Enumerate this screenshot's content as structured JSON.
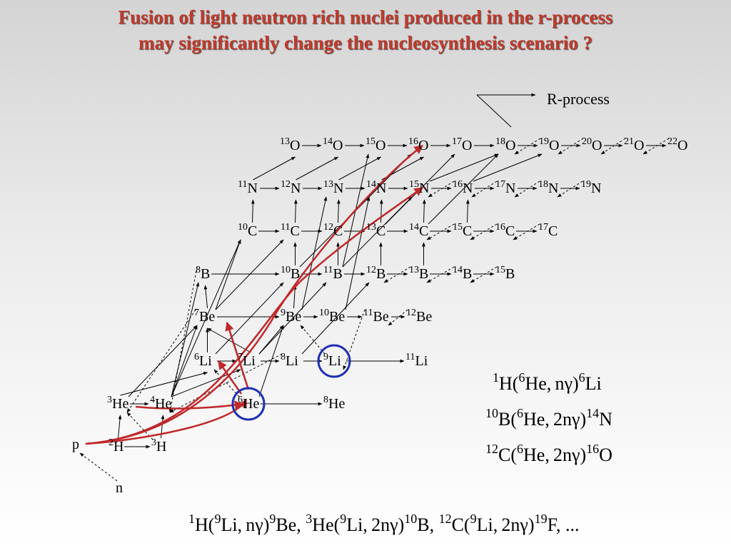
{
  "title": {
    "line1": "Fusion of light neutron rich nuclei produced in the r-process",
    "line2": "may significantly change the nucleosynthesis scenario ?"
  },
  "rprocess_label": "R-process",
  "nuclei": [
    {
      "id": "O13",
      "mass": "13",
      "el": "O"
    },
    {
      "id": "O14",
      "mass": "14",
      "el": "O"
    },
    {
      "id": "O15",
      "mass": "15",
      "el": "O"
    },
    {
      "id": "O16",
      "mass": "16",
      "el": "O"
    },
    {
      "id": "O17",
      "mass": "17",
      "el": "O"
    },
    {
      "id": "O18",
      "mass": "18",
      "el": "O"
    },
    {
      "id": "O19",
      "mass": "19",
      "el": "O"
    },
    {
      "id": "O20",
      "mass": "20",
      "el": "O"
    },
    {
      "id": "O21",
      "mass": "21",
      "el": "O"
    },
    {
      "id": "O22",
      "mass": "22",
      "el": "O"
    },
    {
      "id": "N11",
      "mass": "11",
      "el": "N"
    },
    {
      "id": "N12",
      "mass": "12",
      "el": "N"
    },
    {
      "id": "N13",
      "mass": "13",
      "el": "N"
    },
    {
      "id": "N14",
      "mass": "14",
      "el": "N"
    },
    {
      "id": "N15",
      "mass": "15",
      "el": "N"
    },
    {
      "id": "N16",
      "mass": "16",
      "el": "N"
    },
    {
      "id": "N17",
      "mass": "17",
      "el": "N"
    },
    {
      "id": "N18",
      "mass": "18",
      "el": "N"
    },
    {
      "id": "N19",
      "mass": "19",
      "el": "N"
    },
    {
      "id": "C10",
      "mass": "10",
      "el": "C"
    },
    {
      "id": "C11",
      "mass": "11",
      "el": "C"
    },
    {
      "id": "C12",
      "mass": "12",
      "el": "C"
    },
    {
      "id": "C13",
      "mass": "13",
      "el": "C"
    },
    {
      "id": "C14",
      "mass": "14",
      "el": "C"
    },
    {
      "id": "C15",
      "mass": "15",
      "el": "C"
    },
    {
      "id": "C16",
      "mass": "16",
      "el": "C"
    },
    {
      "id": "C17",
      "mass": "17",
      "el": "C"
    },
    {
      "id": "B8",
      "mass": "8",
      "el": "B"
    },
    {
      "id": "B10",
      "mass": "10",
      "el": "B"
    },
    {
      "id": "B11",
      "mass": "11",
      "el": "B"
    },
    {
      "id": "B12",
      "mass": "12",
      "el": "B"
    },
    {
      "id": "B13",
      "mass": "13",
      "el": "B"
    },
    {
      "id": "B14",
      "mass": "14",
      "el": "B"
    },
    {
      "id": "B15",
      "mass": "15",
      "el": "B"
    },
    {
      "id": "Be7",
      "mass": "7",
      "el": "Be"
    },
    {
      "id": "Be9",
      "mass": "9",
      "el": "Be"
    },
    {
      "id": "Be10",
      "mass": "10",
      "el": "Be"
    },
    {
      "id": "Be11",
      "mass": "11",
      "el": "Be"
    },
    {
      "id": "Be12",
      "mass": "12",
      "el": "Be"
    },
    {
      "id": "Li6",
      "mass": "6",
      "el": "Li"
    },
    {
      "id": "Li7",
      "mass": "7",
      "el": "Li"
    },
    {
      "id": "Li8",
      "mass": "8",
      "el": "Li"
    },
    {
      "id": "Li9",
      "mass": "9",
      "el": "Li"
    },
    {
      "id": "Li11",
      "mass": "11",
      "el": "Li"
    },
    {
      "id": "He3",
      "mass": "3",
      "el": "He"
    },
    {
      "id": "He4",
      "mass": "4",
      "el": "He"
    },
    {
      "id": "He6",
      "mass": "6",
      "el": "He"
    },
    {
      "id": "He8",
      "mass": "8",
      "el": "He"
    },
    {
      "id": "H2",
      "mass": "2",
      "el": "H"
    },
    {
      "id": "H3",
      "mass": "3",
      "el": "H"
    },
    {
      "id": "p",
      "mass": "",
      "el": "p"
    },
    {
      "id": "n",
      "mass": "",
      "el": "n"
    }
  ],
  "reactions_right": [
    [
      {
        "t": "1",
        "sup": true
      },
      {
        "t": "H("
      },
      {
        "t": "6",
        "sup": true
      },
      {
        "t": "He, nγ)"
      },
      {
        "t": "6",
        "sup": true
      },
      {
        "t": "Li"
      }
    ],
    [
      {
        "t": "10",
        "sup": true
      },
      {
        "t": "B("
      },
      {
        "t": "6",
        "sup": true
      },
      {
        "t": "He, 2nγ)"
      },
      {
        "t": "14",
        "sup": true
      },
      {
        "t": "N"
      }
    ],
    [
      {
        "t": "12",
        "sup": true
      },
      {
        "t": "C("
      },
      {
        "t": "6",
        "sup": true
      },
      {
        "t": "He, 2nγ)"
      },
      {
        "t": "16",
        "sup": true
      },
      {
        "t": "O"
      }
    ]
  ],
  "reactions_bottom": [
    {
      "t": "1",
      "sup": true
    },
    {
      "t": "H("
    },
    {
      "t": "9",
      "sup": true
    },
    {
      "t": "Li, nγ)"
    },
    {
      "t": "9",
      "sup": true
    },
    {
      "t": "Be,   "
    },
    {
      "t": "3",
      "sup": true
    },
    {
      "t": "He("
    },
    {
      "t": "9",
      "sup": true
    },
    {
      "t": "Li, 2nγ)"
    },
    {
      "t": "10",
      "sup": true
    },
    {
      "t": "B,    "
    },
    {
      "t": "12",
      "sup": true
    },
    {
      "t": "C("
    },
    {
      "t": "9",
      "sup": true
    },
    {
      "t": "Li, 2nγ)"
    },
    {
      "t": "19",
      "sup": true
    },
    {
      "t": "F, ..."
    }
  ],
  "highlighted": [
    "He6",
    "Li9"
  ],
  "colors": {
    "title": "#c0392b",
    "red_path": "#c0282a",
    "circle": "#1f2fb5"
  }
}
